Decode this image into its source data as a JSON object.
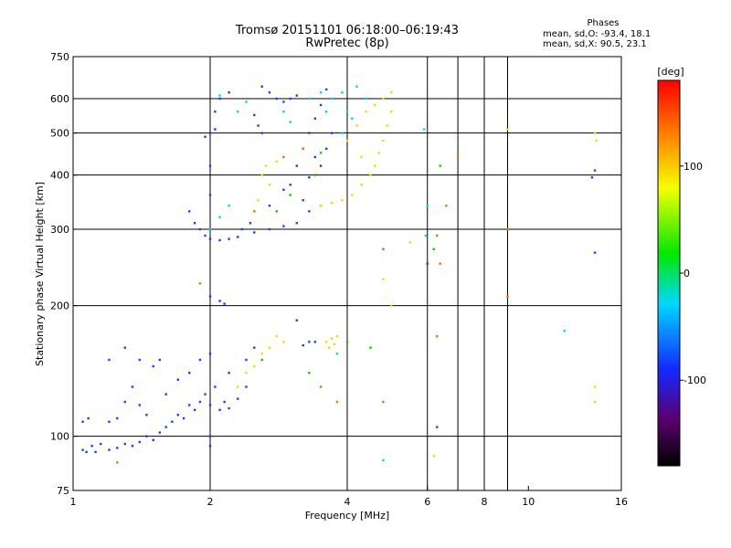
{
  "header": {
    "title_line1": "Tromsø 20151101 06:18:00–06:19:43",
    "title_line2": "RwPretec (8p)"
  },
  "phases": {
    "title": "Phases",
    "o_line": "mean, sd,O: -93.4, 18.1",
    "x_line": "mean, sd,X:  90.5, 23.1"
  },
  "chart_data": {
    "type": "scatter",
    "xlabel": "Frequency [MHz]",
    "ylabel": "Stationary phase Virtual Height [km]",
    "x_scale": "log",
    "y_scale": "log",
    "xlim": [
      1,
      16
    ],
    "ylim": [
      75,
      750
    ],
    "x_ticks": [
      1,
      2,
      4,
      6,
      8,
      10,
      16
    ],
    "x_tick_labels": [
      "1",
      "2",
      "4",
      "6",
      "8",
      "10",
      "16"
    ],
    "x_gridlines": [
      2,
      4,
      6,
      7,
      8,
      9
    ],
    "y_ticks": [
      75,
      100,
      200,
      300,
      400,
      500,
      600,
      750
    ],
    "y_tick_labels": [
      "75",
      "100",
      "200",
      "300",
      "400",
      "500",
      "600",
      "750"
    ],
    "y_gridlines": [
      100,
      200,
      300,
      400,
      500,
      600
    ],
    "grid": true,
    "colorbar": {
      "label": "[deg]",
      "min": -180,
      "max": 180,
      "ticks": [
        100,
        0,
        -100
      ],
      "tick_labels": [
        "100",
        "0",
        "-100"
      ]
    },
    "series": [
      {
        "points": [
          [
            1.05,
            93
          ],
          [
            1.07,
            92
          ],
          [
            1.1,
            95
          ],
          [
            1.12,
            92
          ],
          [
            1.15,
            96
          ],
          [
            1.2,
            93
          ],
          [
            1.25,
            94
          ],
          [
            1.3,
            96
          ],
          [
            1.35,
            95
          ],
          [
            1.4,
            97
          ],
          [
            1.45,
            100
          ],
          [
            1.5,
            98
          ],
          [
            1.55,
            102
          ],
          [
            1.6,
            105
          ],
          [
            1.65,
            108
          ],
          [
            1.7,
            112
          ],
          [
            1.75,
            110
          ],
          [
            1.8,
            118
          ],
          [
            1.85,
            115
          ],
          [
            1.9,
            120
          ],
          [
            1.95,
            125
          ],
          [
            2.0,
            118
          ],
          [
            2.05,
            130
          ],
          [
            2.1,
            115
          ],
          [
            2.15,
            120
          ],
          [
            2.2,
            116
          ],
          [
            2.3,
            122
          ],
          [
            2.4,
            130
          ],
          [
            1.6,
            125
          ],
          [
            1.7,
            135
          ],
          [
            1.8,
            140
          ],
          [
            1.9,
            150
          ],
          [
            2.0,
            155
          ],
          [
            2.0,
            100
          ],
          [
            2.0,
            95
          ],
          [
            1.05,
            108
          ],
          [
            1.08,
            110
          ],
          [
            1.2,
            108
          ],
          [
            1.8,
            330
          ],
          [
            1.85,
            310
          ],
          [
            1.9,
            300
          ],
          [
            1.95,
            290
          ],
          [
            2.0,
            285
          ],
          [
            2.1,
            283
          ],
          [
            2.2,
            285
          ],
          [
            2.3,
            288
          ],
          [
            2.5,
            295
          ],
          [
            2.7,
            300
          ],
          [
            2.9,
            305
          ],
          [
            3.1,
            310
          ],
          [
            3.3,
            330
          ],
          [
            3.5,
            340
          ],
          [
            2.0,
            500
          ],
          [
            2.05,
            510
          ],
          [
            1.95,
            490
          ],
          [
            2.0,
            360
          ],
          [
            2.0,
            420
          ],
          [
            2.05,
            560
          ],
          [
            2.1,
            600
          ],
          [
            2.2,
            620
          ],
          [
            2.6,
            640
          ],
          [
            2.7,
            620
          ],
          [
            2.8,
            600
          ],
          [
            2.9,
            590
          ],
          [
            3.0,
            600
          ],
          [
            3.1,
            610
          ],
          [
            3.0,
            380
          ],
          [
            3.1,
            420
          ],
          [
            3.2,
            460
          ],
          [
            3.3,
            500
          ],
          [
            3.4,
            540
          ],
          [
            3.5,
            580
          ],
          [
            3.6,
            630
          ],
          [
            2.5,
            550
          ],
          [
            2.6,
            500
          ],
          [
            2.55,
            520
          ],
          [
            3.4,
            440
          ],
          [
            3.5,
            420
          ],
          [
            3.6,
            460
          ],
          [
            3.7,
            500
          ],
          [
            3.3,
            165
          ],
          [
            3.2,
            162
          ],
          [
            3.4,
            165
          ],
          [
            2.4,
            150
          ],
          [
            2.5,
            160
          ],
          [
            2.2,
            140
          ],
          [
            13.8,
            395
          ],
          [
            14.0,
            410
          ],
          [
            6.0,
            250
          ],
          [
            6.3,
            105
          ],
          [
            14.0,
            265
          ],
          [
            1.2,
            150
          ],
          [
            1.3,
            160
          ],
          [
            1.4,
            150
          ],
          [
            1.5,
            145
          ],
          [
            1.55,
            150
          ],
          [
            1.35,
            130
          ],
          [
            1.3,
            120
          ],
          [
            1.4,
            118
          ],
          [
            1.25,
            110
          ],
          [
            1.45,
            112
          ],
          [
            2.0,
            210
          ],
          [
            2.1,
            205
          ],
          [
            2.15,
            202
          ],
          [
            3.1,
            185
          ],
          [
            3.3,
            395
          ],
          [
            3.2,
            350
          ],
          [
            2.9,
            370
          ],
          [
            2.7,
            340
          ],
          [
            2.45,
            310
          ],
          [
            2.35,
            300
          ]
        ],
        "color": "#1f3cff"
      },
      {
        "points": [
          [
            3.5,
            340
          ],
          [
            3.7,
            345
          ],
          [
            3.9,
            350
          ],
          [
            4.1,
            360
          ],
          [
            4.3,
            380
          ],
          [
            4.5,
            400
          ],
          [
            4.6,
            420
          ],
          [
            4.7,
            450
          ],
          [
            4.8,
            480
          ],
          [
            4.9,
            520
          ],
          [
            5.0,
            560
          ],
          [
            5.0,
            620
          ],
          [
            4.8,
            600
          ],
          [
            4.6,
            580
          ],
          [
            4.4,
            560
          ],
          [
            4.2,
            520
          ],
          [
            4.0,
            480
          ],
          [
            4.3,
            440
          ],
          [
            3.6,
            165
          ],
          [
            3.7,
            168
          ],
          [
            3.8,
            170
          ],
          [
            3.65,
            160
          ],
          [
            3.75,
            163
          ],
          [
            2.8,
            170
          ],
          [
            2.9,
            165
          ],
          [
            2.7,
            160
          ],
          [
            2.6,
            155
          ],
          [
            2.5,
            145
          ],
          [
            2.4,
            140
          ],
          [
            2.3,
            130
          ],
          [
            2.7,
            380
          ],
          [
            2.6,
            400
          ],
          [
            2.65,
            420
          ],
          [
            2.8,
            430
          ],
          [
            2.5,
            330
          ],
          [
            2.55,
            350
          ],
          [
            14.0,
            500
          ],
          [
            14.1,
            480
          ],
          [
            14.0,
            130
          ],
          [
            14.0,
            120
          ],
          [
            5.5,
            280
          ],
          [
            9.0,
            510
          ],
          [
            6.2,
            90
          ],
          [
            4.8,
            230
          ],
          [
            5.0,
            200
          ]
        ],
        "color": "#e8e000"
      },
      {
        "points": [
          [
            3.6,
            560
          ],
          [
            3.7,
            600
          ],
          [
            3.9,
            620
          ],
          [
            4.2,
            640
          ],
          [
            4.4,
            600
          ],
          [
            2.4,
            590
          ],
          [
            2.3,
            560
          ],
          [
            2.9,
            560
          ],
          [
            3.0,
            530
          ],
          [
            3.3,
            600
          ],
          [
            3.5,
            620
          ],
          [
            2.1,
            610
          ],
          [
            5.9,
            510
          ],
          [
            5.95,
            290
          ],
          [
            6.0,
            340
          ],
          [
            4.0,
            560
          ],
          [
            4.1,
            540
          ],
          [
            3.9,
            500
          ],
          [
            2.2,
            340
          ],
          [
            2.1,
            320
          ],
          [
            2.0,
            300
          ],
          [
            3.8,
            155
          ],
          [
            4.8,
            88
          ],
          [
            12.0,
            175
          ]
        ],
        "color": "#00d8e0"
      },
      {
        "points": [
          [
            6.4,
            420
          ],
          [
            3.5,
            450
          ],
          [
            3.4,
            400
          ],
          [
            3.0,
            360
          ],
          [
            2.8,
            330
          ],
          [
            3.3,
            140
          ],
          [
            4.0,
            165
          ],
          [
            2.6,
            150
          ],
          [
            6.2,
            270
          ],
          [
            4.8,
            270
          ],
          [
            4.5,
            160
          ]
        ],
        "color": "#22c000"
      },
      {
        "points": [
          [
            6.6,
            340
          ],
          [
            7.0,
            440
          ],
          [
            6.3,
            290
          ],
          [
            6.4,
            250
          ],
          [
            9.0,
            300
          ],
          [
            3.8,
            120
          ],
          [
            3.5,
            130
          ],
          [
            2.9,
            440
          ],
          [
            3.2,
            460
          ],
          [
            2.5,
            330
          ],
          [
            1.9,
            225
          ],
          [
            1.25,
            87
          ],
          [
            6.3,
            170
          ],
          [
            9.0,
            210
          ],
          [
            4.8,
            120
          ]
        ],
        "color": "#ff6a00"
      }
    ]
  }
}
